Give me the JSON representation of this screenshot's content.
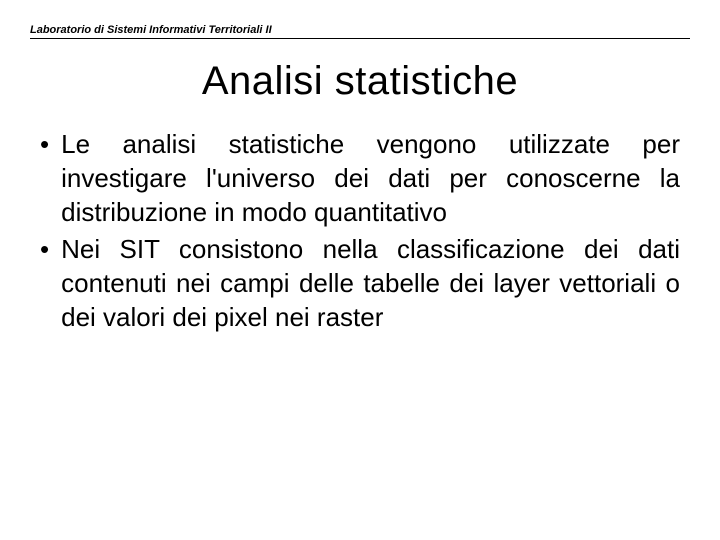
{
  "header": {
    "course_label": "Laboratorio di Sistemi Informativi Territoriali II"
  },
  "slide": {
    "title": "Analisi statistiche",
    "title_fontsize": 40,
    "title_color": "#000000",
    "body_fontsize": 26,
    "body_color": "#000000",
    "background_color": "#ffffff",
    "bullets": [
      "Le analisi statistiche vengono utilizzate per investigare l'universo dei dati per conoscerne la distribuzione in modo quantitativo",
      "Nei SIT consistono nella classificazione dei dati contenuti nei campi delle tabelle dei layer vettoriali o dei valori dei pixel nei raster"
    ],
    "bullet_marker": "•"
  }
}
